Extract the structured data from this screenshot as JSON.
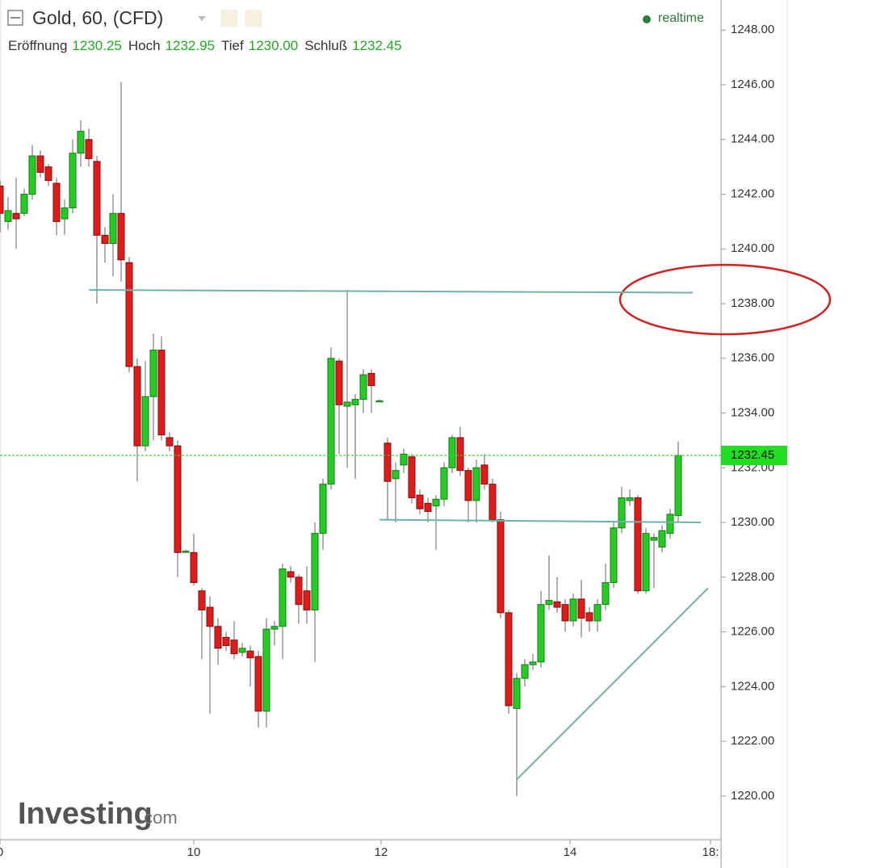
{
  "chart_data": {
    "type": "candlestick",
    "title": "Gold, 60, (CFD)",
    "status": "realtime",
    "ohlc_header": [
      {
        "label": "Eröffnung",
        "value": "1230.25"
      },
      {
        "label": "Hoch",
        "value": "1232.95"
      },
      {
        "label": "Tief",
        "value": "1230.00"
      },
      {
        "label": "Schluß",
        "value": "1232.45"
      }
    ],
    "logo": {
      "main": "Investing",
      "suffix": ".com"
    },
    "up_color": "#22cc22",
    "down_color": "#e31a1a",
    "open": [
      1242.3,
      1241.0,
      1241.3,
      1241.3,
      1242.0,
      1243.4,
      1243.0,
      1242.4,
      1241.1,
      1241.5,
      1243.5,
      1244.0,
      1243.2,
      1240.5,
      1240.2,
      1241.3,
      1239.5,
      1235.7,
      1232.8,
      1234.6,
      1236.3,
      1233.1,
      1232.8,
      1228.95,
      1228.9,
      1227.5,
      1226.9,
      1226.2,
      1225.8,
      1225.7,
      1225.25,
      1225.3,
      1225.1,
      1223.1,
      1226.1,
      1226.2,
      1228.2,
      1228.0,
      1227.5,
      1226.8,
      1229.6,
      1231.4,
      1235.9,
      1234.25,
      1234.3,
      1234.5,
      1235.45,
      1234.45,
      1232.9,
      1231.6,
      1232.1,
      1232.4,
      1231.0,
      1230.7,
      1230.6,
      1230.85,
      1232.0,
      1233.1,
      1231.9,
      1230.8,
      1232.1,
      1231.4,
      1230.1,
      1226.7,
      1223.2,
      1224.3,
      1224.8,
      1224.9,
      1227.0,
      1227.1,
      1227.0,
      1226.4,
      1227.2,
      1226.7,
      1226.4,
      1227.0,
      1227.8,
      1229.8,
      1230.8,
      1230.9,
      1227.5,
      1229.35,
      1229.1,
      1229.6,
      1230.25
    ],
    "high": [
      1242.5,
      1241.9,
      1242.6,
      1242.2,
      1243.8,
      1243.6,
      1243.1,
      1242.6,
      1241.8,
      1244.0,
      1244.7,
      1244.4,
      1243.4,
      1240.8,
      1242.0,
      1246.1,
      1239.7,
      1236.0,
      1235.9,
      1236.9,
      1236.8,
      1233.3,
      1233.0,
      1229.0,
      1229.6,
      1227.6,
      1227.3,
      1226.5,
      1226.0,
      1226.4,
      1225.6,
      1225.5,
      1225.3,
      1226.5,
      1226.4,
      1228.5,
      1228.4,
      1228.1,
      1228.4,
      1230.0,
      1231.6,
      1236.4,
      1236.0,
      1238.5,
      1234.7,
      1235.6,
      1235.6,
      1234.5,
      1233.1,
      1232.2,
      1232.7,
      1232.5,
      1231.2,
      1230.9,
      1231.0,
      1232.2,
      1233.2,
      1233.5,
      1232.0,
      1232.3,
      1232.5,
      1231.6,
      1230.4,
      1226.8,
      1224.5,
      1225.0,
      1225.2,
      1227.5,
      1228.8,
      1228.0,
      1227.2,
      1227.4,
      1227.9,
      1226.9,
      1227.2,
      1228.5,
      1230.0,
      1231.3,
      1231.2,
      1231.0,
      1229.8,
      1229.6,
      1229.9,
      1230.5,
      1232.95
    ],
    "low": [
      1240.6,
      1240.7,
      1240.0,
      1241.2,
      1241.8,
      1242.6,
      1242.3,
      1240.5,
      1240.5,
      1241.3,
      1243.0,
      1243.0,
      1238.0,
      1239.5,
      1239.0,
      1238.8,
      1235.5,
      1231.5,
      1232.6,
      1233.0,
      1233.0,
      1232.6,
      1228.0,
      1228.9,
      1227.7,
      1225.0,
      1223.0,
      1224.8,
      1225.3,
      1225.0,
      1225.1,
      1224.0,
      1222.5,
      1222.5,
      1225.5,
      1225.0,
      1227.8,
      1226.3,
      1226.3,
      1224.9,
      1229.0,
      1231.2,
      1232.5,
      1232.0,
      1231.6,
      1234.0,
      1234.0,
      1234.4,
      1230.1,
      1230.0,
      1231.8,
      1230.7,
      1230.3,
      1230.0,
      1229.0,
      1230.6,
      1231.8,
      1231.7,
      1230.0,
      1230.0,
      1231.2,
      1230.0,
      1226.5,
      1223.0,
      1220.0,
      1224.0,
      1224.6,
      1224.7,
      1226.8,
      1226.7,
      1226.0,
      1226.2,
      1225.8,
      1226.0,
      1226.0,
      1226.8,
      1227.6,
      1229.6,
      1230.6,
      1227.4,
      1227.4,
      1227.6,
      1228.9,
      1229.4,
      1230.0
    ],
    "close": [
      1241.3,
      1241.4,
      1241.1,
      1242.0,
      1243.4,
      1242.8,
      1242.5,
      1241.0,
      1241.5,
      1243.5,
      1244.3,
      1243.3,
      1240.5,
      1240.2,
      1241.3,
      1239.6,
      1235.7,
      1232.8,
      1234.6,
      1236.3,
      1233.2,
      1232.8,
      1228.9,
      1228.95,
      1227.8,
      1226.8,
      1226.2,
      1225.4,
      1225.5,
      1225.2,
      1225.4,
      1225.05,
      1223.1,
      1226.1,
      1226.2,
      1228.3,
      1228.0,
      1227.0,
      1226.8,
      1229.6,
      1231.4,
      1236.0,
      1234.3,
      1234.4,
      1234.5,
      1235.4,
      1235.0,
      1234.45,
      1231.5,
      1231.9,
      1232.5,
      1230.9,
      1230.5,
      1230.4,
      1230.85,
      1232.0,
      1233.1,
      1231.9,
      1230.8,
      1232.0,
      1231.4,
      1230.1,
      1226.7,
      1223.3,
      1224.3,
      1224.8,
      1224.9,
      1227.0,
      1227.15,
      1226.9,
      1226.4,
      1227.2,
      1226.5,
      1226.4,
      1227.0,
      1227.8,
      1229.8,
      1230.9,
      1230.9,
      1227.5,
      1229.6,
      1229.45,
      1229.7,
      1230.3,
      1232.45
    ],
    "xlim": [
      0,
      89.3
    ],
    "xticks": [
      {
        "value": 0,
        "label": "0"
      },
      {
        "value": 24,
        "label": "10"
      },
      {
        "value": 47.2,
        "label": "12"
      },
      {
        "value": 70.6,
        "label": "14"
      },
      {
        "value": 88,
        "label": "18:"
      }
    ],
    "ylim": [
      1218.4,
      1249.1
    ],
    "yticks": [
      {
        "value": 1220,
        "label": "1220.00"
      },
      {
        "value": 1222,
        "label": "1222.00"
      },
      {
        "value": 1224,
        "label": "1224.00"
      },
      {
        "value": 1226,
        "label": "1226.00"
      },
      {
        "value": 1228,
        "label": "1228.00"
      },
      {
        "value": 1230,
        "label": "1230.00"
      },
      {
        "value": 1232,
        "label": "1232.00"
      },
      {
        "value": 1234,
        "label": "1234.00"
      },
      {
        "value": 1236,
        "label": "1236.00"
      },
      {
        "value": 1238,
        "label": "1238.00"
      },
      {
        "value": 1240,
        "label": "1240.00"
      },
      {
        "value": 1242,
        "label": "1242.00"
      },
      {
        "value": 1244,
        "label": "1244.00"
      },
      {
        "value": 1246,
        "label": "1246.00"
      },
      {
        "value": 1248,
        "label": "1248.00"
      }
    ],
    "grid": false,
    "last_price": {
      "value": 1232.45,
      "label": "1232.45",
      "color": "#22dd22"
    },
    "trendline_color": "#6fb3a8",
    "trendlines": [
      {
        "x": [
          11,
          85.8
        ],
        "y": [
          1238.5,
          1238.4
        ]
      },
      {
        "x": [
          47,
          86.8
        ],
        "y": [
          1230.1,
          1230.0
        ]
      },
      {
        "x": [
          64,
          87.7
        ],
        "y": [
          1220.6,
          1227.6
        ]
      }
    ]
  }
}
